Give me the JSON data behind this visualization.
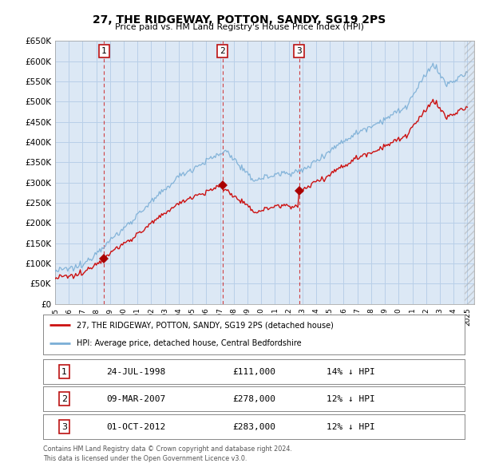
{
  "title": "27, THE RIDGEWAY, POTTON, SANDY, SG19 2PS",
  "subtitle": "Price paid vs. HM Land Registry's House Price Index (HPI)",
  "legend_label_red": "27, THE RIDGEWAY, POTTON, SANDY, SG19 2PS (detached house)",
  "legend_label_blue": "HPI: Average price, detached house, Central Bedfordshire",
  "footer1": "Contains HM Land Registry data © Crown copyright and database right 2024.",
  "footer2": "This data is licensed under the Open Government Licence v3.0.",
  "transactions": [
    {
      "num": 1,
      "date": "24-JUL-1998",
      "date_num": 1998.55,
      "price": 111000,
      "label": "14% ↓ HPI"
    },
    {
      "num": 2,
      "date": "09-MAR-2007",
      "date_num": 2007.18,
      "price": 278000,
      "label": "12% ↓ HPI"
    },
    {
      "num": 3,
      "date": "01-OCT-2012",
      "date_num": 2012.75,
      "price": 283000,
      "label": "12% ↓ HPI"
    }
  ],
  "hpi_color": "#7aaed6",
  "price_color": "#cc1111",
  "marker_color": "#aa0000",
  "vline_color": "#cc2222",
  "plot_bg": "#dce8f5",
  "grid_color": "#b8cfe8",
  "ylim": [
    0,
    650000
  ],
  "yticks": [
    0,
    50000,
    100000,
    150000,
    200000,
    250000,
    300000,
    350000,
    400000,
    450000,
    500000,
    550000,
    600000,
    650000
  ],
  "xlim_start": 1995.0,
  "xlim_end": 2025.5
}
